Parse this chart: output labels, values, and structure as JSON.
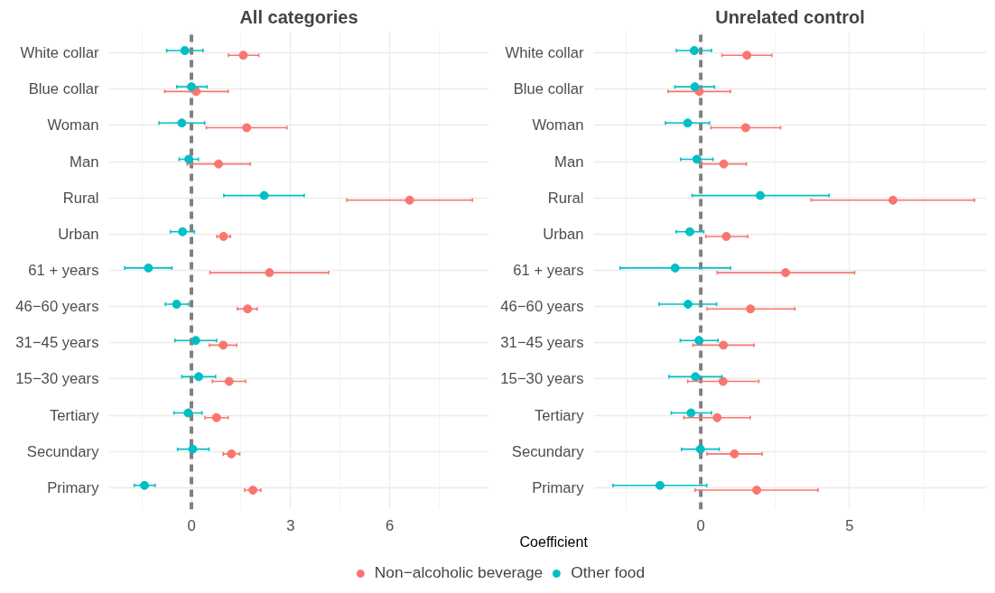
{
  "chart_data": [
    {
      "type": "scatter",
      "title": "All categories",
      "orientation": "horizontal",
      "xlabel": "Coefficient",
      "categories": [
        "White collar",
        "Blue collar",
        "Woman",
        "Man",
        "Rural",
        "Urban",
        "61 + years",
        "46−60 years",
        "31−45 years",
        "15−30 years",
        "Tertiary",
        "Secundary",
        "Primary"
      ],
      "xlim": [
        -2.5,
        9
      ],
      "xticks": [
        0,
        3,
        6
      ],
      "grid": true,
      "legend": "bottom",
      "marker": "circle",
      "ref_lines": [
        {
          "axis": "x",
          "value": 0,
          "color": "#808080",
          "line_style": "dashed"
        }
      ],
      "series": [
        {
          "name": "Non−alcoholic beverage",
          "color": "#f8766d",
          "values": [
            1.57,
            0.14,
            1.67,
            0.82,
            6.6,
            0.97,
            2.36,
            1.7,
            0.96,
            1.14,
            0.76,
            1.21,
            1.86
          ],
          "errors": [
            [
              1.12,
              2.04
            ],
            [
              -0.81,
              1.11
            ],
            [
              0.45,
              2.89
            ],
            [
              -0.13,
              1.78
            ],
            [
              4.7,
              8.5
            ],
            [
              0.77,
              1.18
            ],
            [
              0.56,
              4.15
            ],
            [
              1.39,
              1.99
            ],
            [
              0.54,
              1.37
            ],
            [
              0.63,
              1.64
            ],
            [
              0.41,
              1.11
            ],
            [
              0.96,
              1.46
            ],
            [
              1.61,
              2.1
            ]
          ]
        },
        {
          "name": "Other food",
          "color": "#00bfc4",
          "values": [
            -0.2,
            0.0,
            -0.29,
            -0.08,
            2.2,
            -0.27,
            -1.3,
            -0.45,
            0.13,
            0.22,
            -0.1,
            0.04,
            -1.42
          ],
          "errors": [
            [
              -0.75,
              0.35
            ],
            [
              -0.44,
              0.47
            ],
            [
              -0.98,
              0.4
            ],
            [
              -0.37,
              0.21
            ],
            [
              0.98,
              3.41
            ],
            [
              -0.63,
              0.09
            ],
            [
              -2.02,
              -0.59
            ],
            [
              -0.79,
              -0.09
            ],
            [
              -0.5,
              0.76
            ],
            [
              -0.29,
              0.73
            ],
            [
              -0.53,
              0.32
            ],
            [
              -0.42,
              0.53
            ],
            [
              -1.73,
              -1.1
            ]
          ]
        }
      ]
    },
    {
      "type": "scatter",
      "title": "Unrelated control",
      "orientation": "horizontal",
      "categories": [
        "White collar",
        "Blue collar",
        "Woman",
        "Man",
        "Rural",
        "Urban",
        "61 + years",
        "46−60 years",
        "31−45 years",
        "15−30 years",
        "Tertiary",
        "Secundary",
        "Primary"
      ],
      "xlim": [
        -3.6,
        9.6
      ],
      "xticks": [
        0,
        5
      ],
      "grid": true,
      "marker": "circle",
      "ref_lines": [
        {
          "axis": "x",
          "value": 0,
          "color": "#808080",
          "line_style": "dashed"
        }
      ],
      "series": [
        {
          "color": "#f8766d",
          "values": [
            1.55,
            -0.05,
            1.51,
            0.77,
            6.46,
            0.86,
            2.85,
            1.67,
            0.76,
            0.75,
            0.55,
            1.13,
            1.88
          ],
          "errors": [
            [
              0.71,
              2.39
            ],
            [
              -1.1,
              1.0
            ],
            [
              0.34,
              2.68
            ],
            [
              0.02,
              1.53
            ],
            [
              3.71,
              9.2
            ],
            [
              0.17,
              1.58
            ],
            [
              0.55,
              5.17
            ],
            [
              0.21,
              3.16
            ],
            [
              -0.26,
              1.79
            ],
            [
              -0.44,
              1.95
            ],
            [
              -0.57,
              1.66
            ],
            [
              0.21,
              2.06
            ],
            [
              -0.19,
              3.94
            ]
          ]
        },
        {
          "color": "#00bfc4",
          "values": [
            -0.22,
            -0.2,
            -0.44,
            -0.13,
            2.0,
            -0.37,
            -0.86,
            -0.43,
            -0.06,
            -0.18,
            -0.33,
            -0.01,
            -1.37
          ],
          "errors": [
            [
              -0.82,
              0.36
            ],
            [
              -0.87,
              0.46
            ],
            [
              -1.19,
              0.29
            ],
            [
              -0.68,
              0.41
            ],
            [
              -0.29,
              4.31
            ],
            [
              -0.83,
              0.1
            ],
            [
              -2.71,
              1.0
            ],
            [
              -1.4,
              0.53
            ],
            [
              -0.69,
              0.58
            ],
            [
              -1.07,
              0.71
            ],
            [
              -0.99,
              0.36
            ],
            [
              -0.65,
              0.62
            ],
            [
              -2.95,
              0.2
            ]
          ]
        }
      ]
    }
  ]
}
